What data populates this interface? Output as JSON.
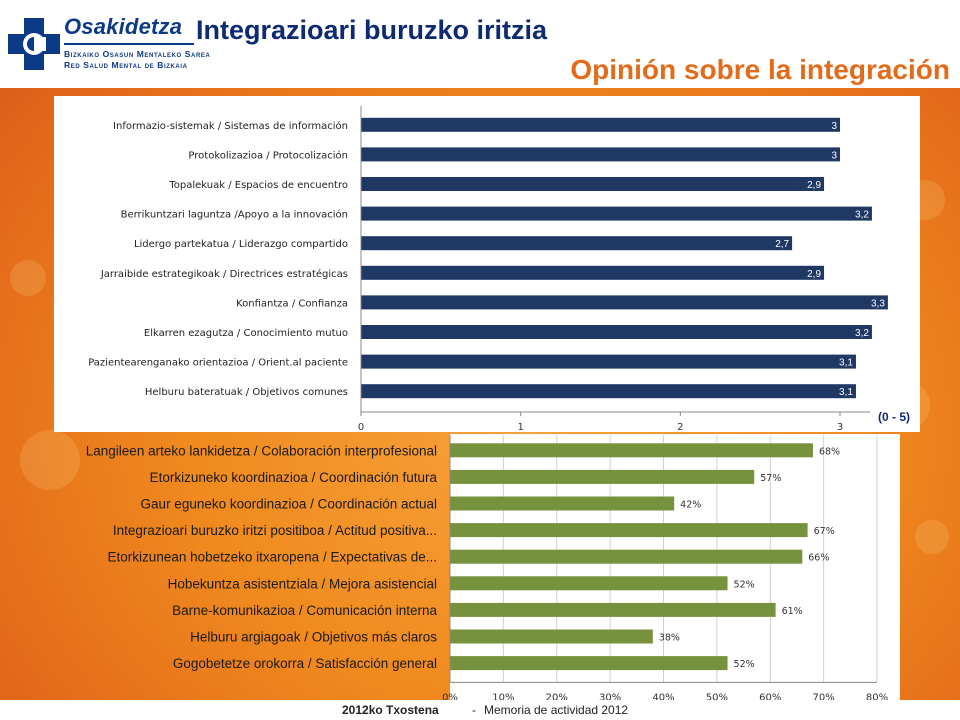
{
  "header": {
    "logo_name": "Osakidetza",
    "logo_sub1": "Bizkaiko Osasun Mentaleko Sarea",
    "logo_sub2": "Red Salud Mental de Bizkaia",
    "title": "Integrazioari buruzko iritzia",
    "subtitle": "Opinión sobre la integración"
  },
  "colors": {
    "bar1": "#1f3864",
    "bar2": "#76923c",
    "title": "#0d2a73",
    "subtitle": "#e36b1a"
  },
  "scale_note": "(0 - 5)",
  "footer": {
    "year": "2012ko Txostena",
    "separator": "-",
    "memoria": "Memoria de actividad 2012"
  },
  "chart_data": [
    {
      "type": "bar",
      "orientation": "horizontal",
      "categories": [
        "Informazio-sistemak / Sistemas de información",
        "Protokolizazioa / Protocolización",
        "Topalekuak / Espacios de encuentro",
        "Berrikuntzari laguntza /Apoyo a la innovación",
        "Lidergo partekatua / Liderazgo compartido",
        "Jarraibide estrategikoak / Directrices estratégicas",
        "Konfiantza / Confianza",
        "Elkarren ezagutza / Conocimiento mutuo",
        "Pazientearenganako orientazioa / Orient.al paciente",
        "Helburu bateratuak / Objetivos comunes"
      ],
      "values": [
        3,
        3,
        2.9,
        3.2,
        2.7,
        2.9,
        3.3,
        3.2,
        3.1,
        3.1
      ],
      "value_labels": [
        "3",
        "3",
        "2,9",
        "3,2",
        "2,7",
        "2,9",
        "3,3",
        "3,2",
        "3,1",
        "3,1"
      ],
      "xlim": [
        0,
        3.5
      ],
      "xticks": [
        "0",
        "1",
        "2",
        "3"
      ],
      "grid": false
    },
    {
      "type": "bar",
      "orientation": "horizontal",
      "categories": [
        "Langileen arteko lankidetza / Colaboración interprofesional",
        "Etorkizuneko koordinazioa / Coordinación futura",
        "Gaur eguneko koordinazioa / Coordinación actual",
        "Integrazioari buruzko iritzi positiboa / Actitud positiva...",
        "Etorkizunean hobetzeko itxaropena / Expectativas de...",
        "Hobekuntza asistentziala / Mejora asistencial",
        "Barne-komunikazioa / Comunicación interna",
        "Helburu argiagoak / Objetivos más claros",
        "Gogobetetze orokorra / Satisfacción general"
      ],
      "values": [
        68,
        57,
        42,
        67,
        66,
        52,
        61,
        38,
        52
      ],
      "value_labels": [
        "68%",
        "57%",
        "42%",
        "67%",
        "66%",
        "52%",
        "61%",
        "38%",
        "52%"
      ],
      "xlim": [
        0,
        80
      ],
      "xticks": [
        "0%",
        "10%",
        "20%",
        "30%",
        "40%",
        "50%",
        "60%",
        "70%",
        "80%"
      ],
      "grid": true
    }
  ]
}
